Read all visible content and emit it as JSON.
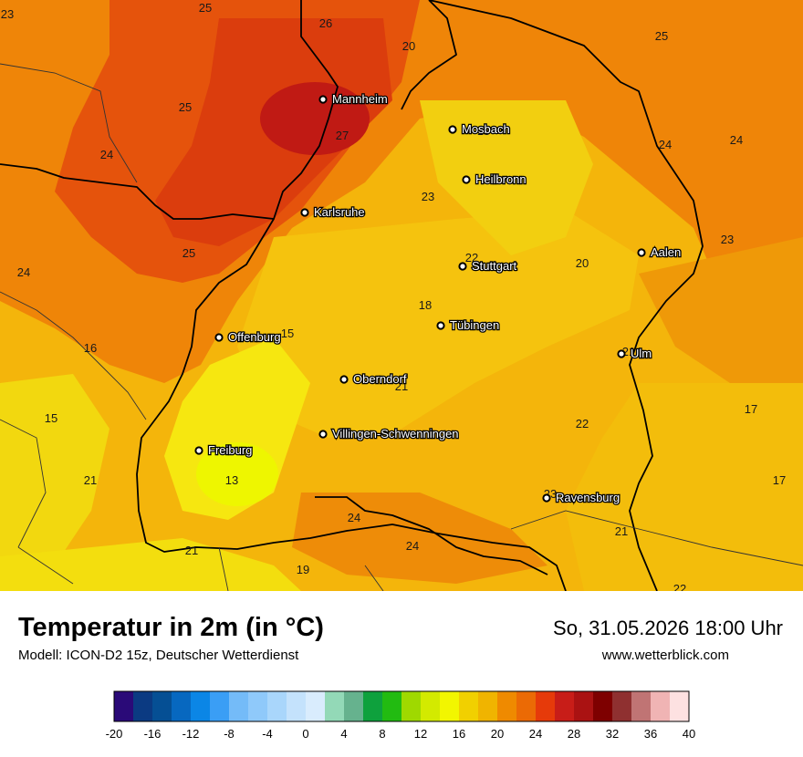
{
  "header": {
    "title": "Temperatur in 2m (in °C)",
    "model": "Modell: ICON-D2 15z, Deutscher Wetterdienst",
    "datetime": "So, 31.05.2026 18:00 Uhr",
    "website": "www.wetterblick.com"
  },
  "cities": [
    {
      "name": "Mannheim"
    },
    {
      "name": "Mosbach"
    },
    {
      "name": "Heilbronn"
    },
    {
      "name": "Karlsruhe"
    },
    {
      "name": "Stuttgart"
    },
    {
      "name": "Aalen"
    },
    {
      "name": "Tübingen"
    },
    {
      "name": "Offenburg"
    },
    {
      "name": "Ulm"
    },
    {
      "name": "Oberndorf"
    },
    {
      "name": "Villingen-Schwenningen"
    },
    {
      "name": "Freiburg"
    },
    {
      "name": "Ravensburg"
    }
  ],
  "values": [
    "23",
    "25",
    "26",
    "20",
    "25",
    "25",
    "27",
    "15",
    "24",
    "24",
    "24",
    "23",
    "25",
    "22",
    "20",
    "23",
    "24",
    "18",
    "16",
    "15",
    "21",
    "21",
    "15",
    "17",
    "22",
    "13",
    "21",
    "23",
    "17",
    "24",
    "21",
    "24",
    "19",
    "21",
    "22"
  ],
  "legend": {
    "ticks": [
      "-20",
      "-16",
      "-12",
      "-8",
      "-4",
      "0",
      "4",
      "8",
      "12",
      "16",
      "20",
      "24",
      "28",
      "32",
      "36",
      "40"
    ],
    "colors": [
      "#2a0a78",
      "#0b3a82",
      "#054f94",
      "#0768c0",
      "#0b86e6",
      "#3a9ef5",
      "#74bbf8",
      "#8fc9fa",
      "#a9d6fb",
      "#c4e2fc",
      "#d9ecfd",
      "#93d9b7",
      "#66b28e",
      "#0ea13d",
      "#22bb11",
      "#9fd900",
      "#d3ea00",
      "#f2f600",
      "#f1d000",
      "#f0b400",
      "#ef8a00",
      "#eb6a05",
      "#e63a0a",
      "#c81d18",
      "#aa1212",
      "#7e0000",
      "#8f3030",
      "#c07474",
      "#f0b4b4",
      "#fde1e1"
    ]
  }
}
